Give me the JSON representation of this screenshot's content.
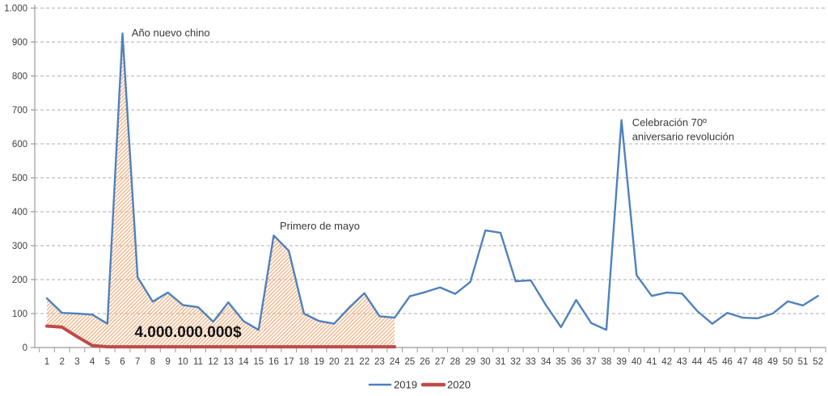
{
  "chart_data": {
    "type": "line",
    "title": "",
    "xlabel": "",
    "ylabel": "",
    "categories": [
      "1",
      "2",
      "3",
      "4",
      "5",
      "6",
      "7",
      "8",
      "9",
      "10",
      "11",
      "12",
      "13",
      "14",
      "15",
      "16",
      "17",
      "18",
      "19",
      "20",
      "21",
      "22",
      "23",
      "24",
      "25",
      "26",
      "27",
      "28",
      "29",
      "30",
      "31",
      "32",
      "33",
      "34",
      "35",
      "36",
      "37",
      "38",
      "39",
      "40",
      "41",
      "42",
      "43",
      "44",
      "45",
      "46",
      "47",
      "48",
      "49",
      "50",
      "51",
      "52"
    ],
    "ylim": [
      0,
      1000
    ],
    "ytick_step": 100,
    "ytick_labels": [
      "0",
      "100",
      "200",
      "300",
      "400",
      "500",
      "600",
      "700",
      "800",
      "900",
      "1.000"
    ],
    "grid": "horizontal-dashed",
    "gridline_color": "#ADADAD",
    "axis_color": "#9B9B9B",
    "legend_position": "bottom-center",
    "series": [
      {
        "name": "2019",
        "color": "#4F81BD",
        "stroke_width": 2.4,
        "values": [
          145,
          102,
          100,
          97,
          70,
          925,
          207,
          135,
          162,
          125,
          119,
          76,
          133,
          78,
          52,
          330,
          285,
          100,
          78,
          70,
          118,
          160,
          92,
          88,
          151,
          163,
          177,
          158,
          193,
          345,
          338,
          195,
          198,
          125,
          60,
          140,
          72,
          52,
          670,
          213,
          152,
          162,
          159,
          108,
          70,
          102,
          88,
          86,
          100,
          136,
          124,
          152
        ]
      },
      {
        "name": "2020",
        "color": "#BE4B48",
        "stroke_width": 4,
        "values": [
          63,
          60,
          32,
          6,
          2,
          2,
          2,
          2,
          2,
          2,
          2,
          2,
          2,
          2,
          2,
          2,
          2,
          2,
          2,
          2,
          2,
          2,
          2,
          2
        ]
      }
    ],
    "shaded_area": {
      "between": [
        "2019",
        "2020"
      ],
      "week_range": [
        1,
        24
      ],
      "style": "diagonal-hatch",
      "hatch_color": "#F4B183"
    },
    "annotations": [
      {
        "id": "anno-chinese-new-year",
        "text": "Año nuevo chino",
        "week": 6.6,
        "value": 917,
        "style": "plain"
      },
      {
        "id": "anno-may-day",
        "text": "Primero de mayo",
        "week": 16.4,
        "value": 348,
        "style": "plain"
      },
      {
        "id": "anno-revolution",
        "text": "Celebración 70º\naniversario revolución",
        "week": 39.7,
        "value": 652,
        "style": "plain"
      },
      {
        "id": "anno-lost-value",
        "text": "4.000.000.000$",
        "week": 6.8,
        "value": 31,
        "style": "big-bold"
      }
    ],
    "legend": [
      {
        "label": "2019",
        "color": "#4F81BD",
        "line_width": 2.6
      },
      {
        "label": "2020",
        "color": "#BE4B48",
        "line_width": 4.5
      }
    ]
  }
}
